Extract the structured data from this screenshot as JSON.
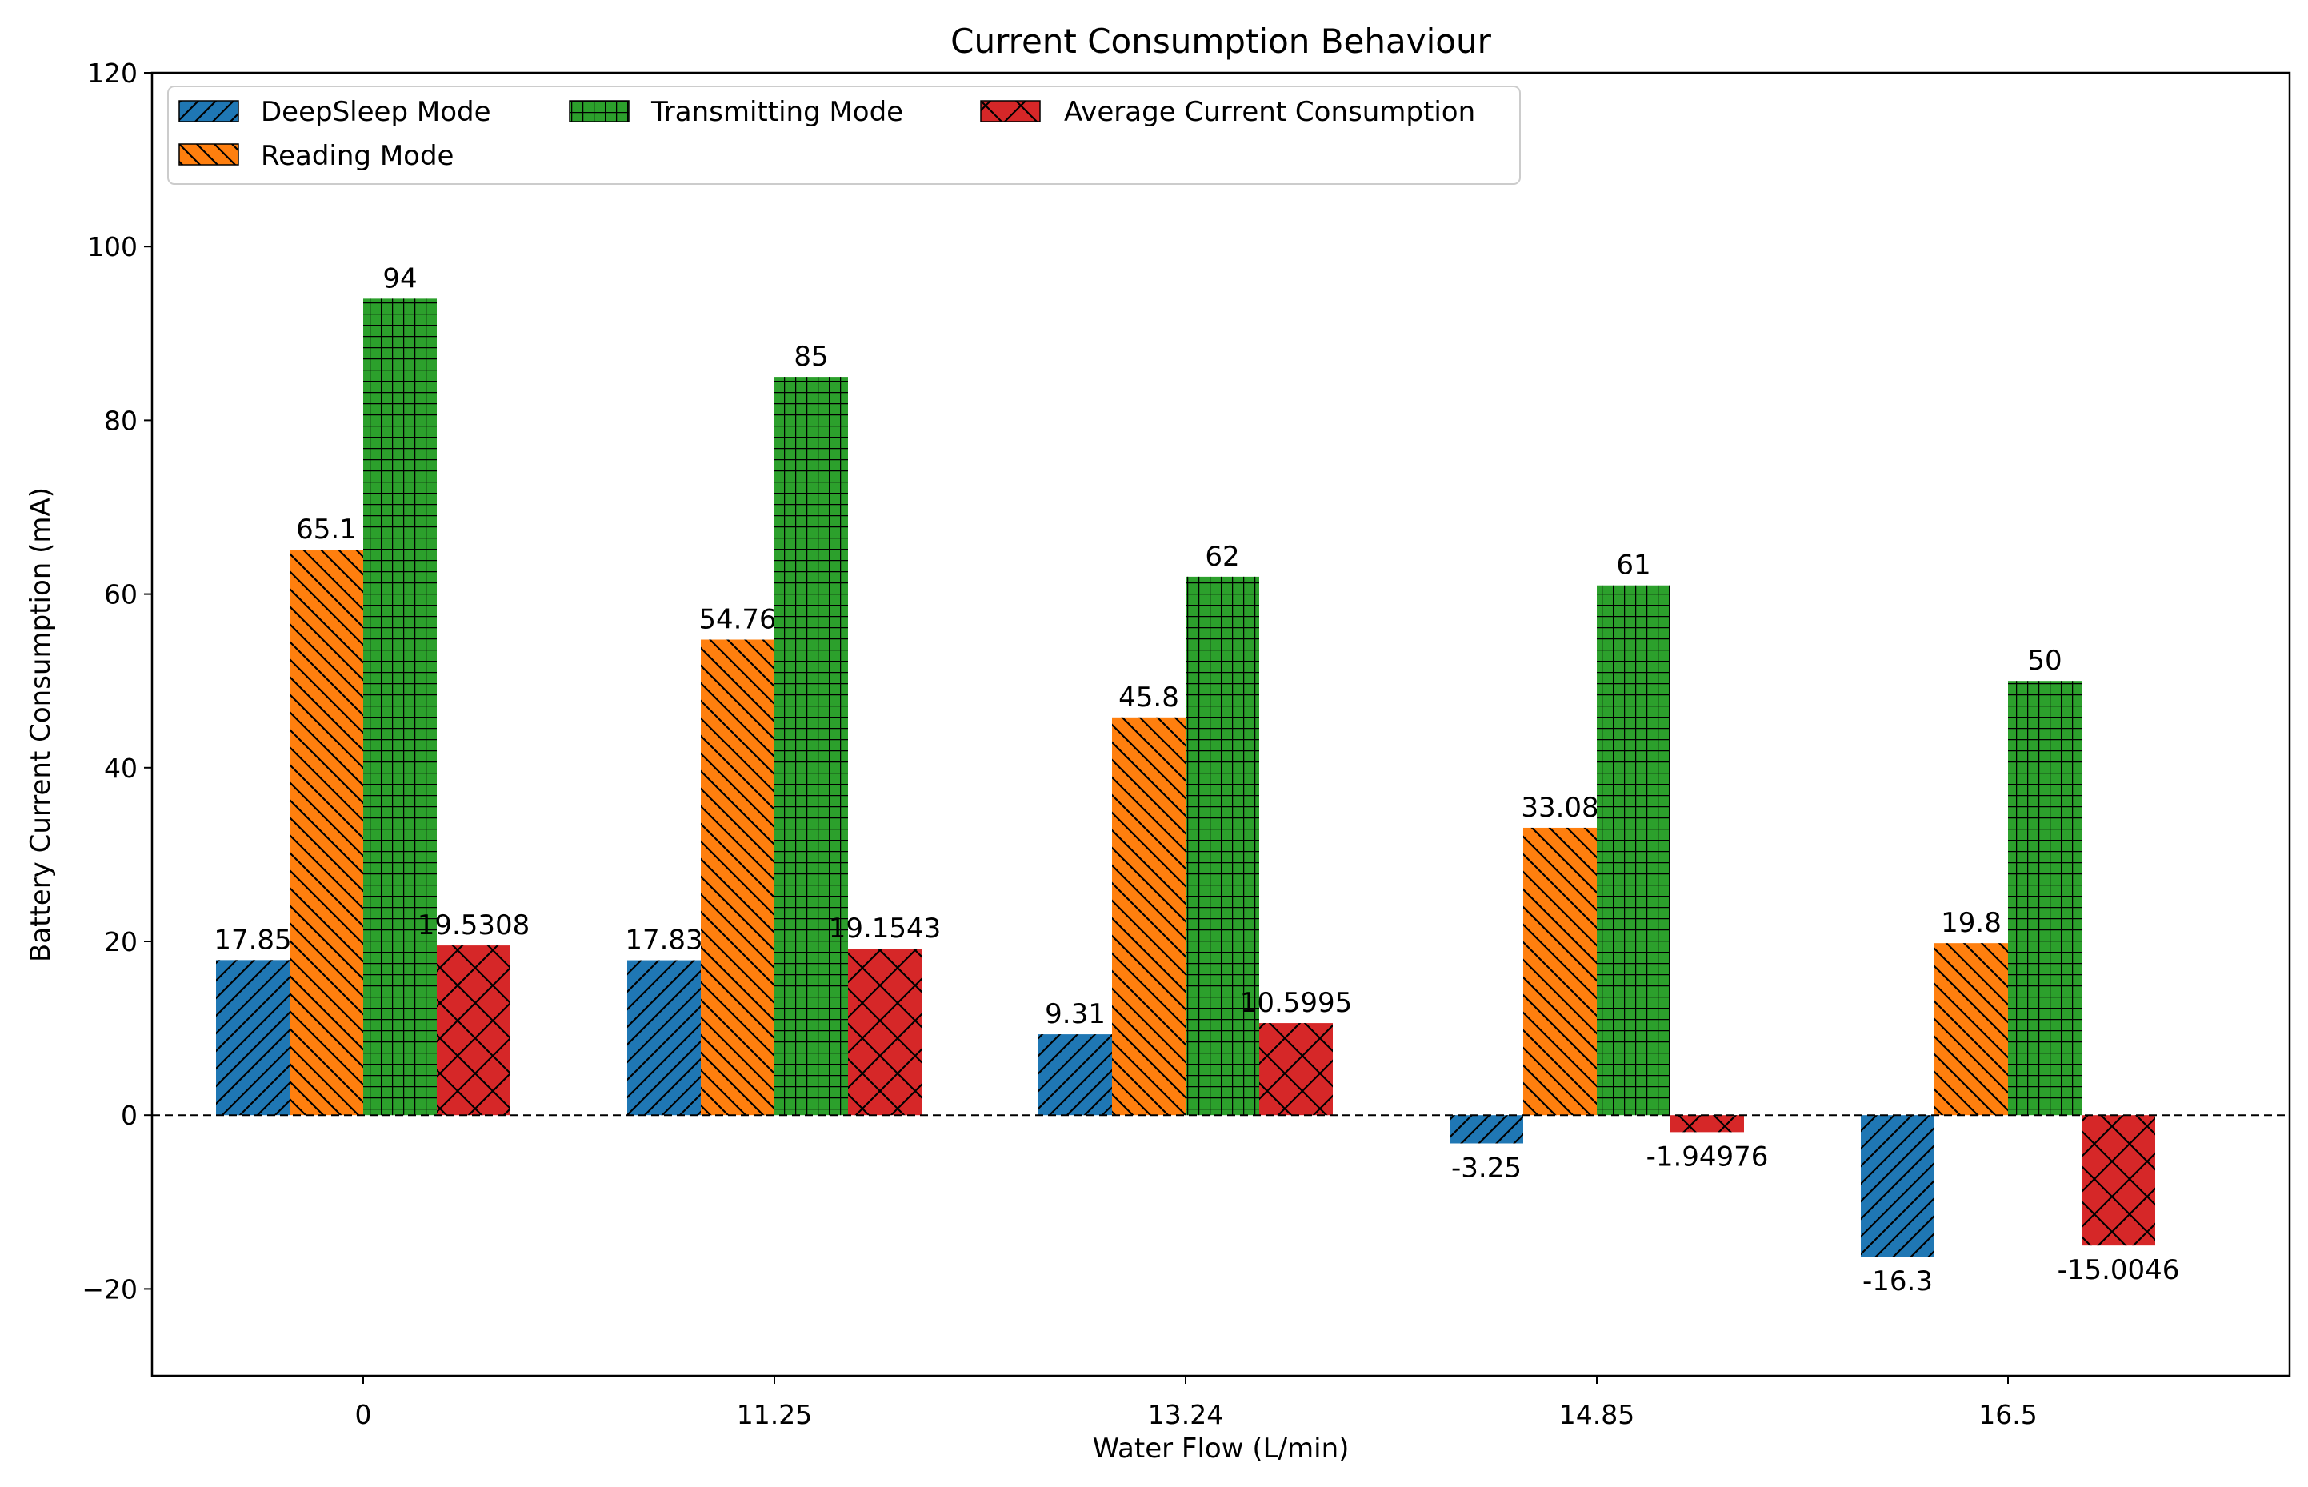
{
  "chart_data": {
    "type": "bar",
    "title": "Current Consumption Behaviour",
    "xlabel": "Water Flow (L/min)",
    "ylabel": "Battery Current Consumption (mA)",
    "categories": [
      "0",
      "11.25",
      "13.24",
      "14.85",
      "16.5"
    ],
    "ylim": [
      -30,
      120
    ],
    "yticks": [
      -20,
      0,
      20,
      40,
      60,
      80,
      100,
      120
    ],
    "ytick_labels": [
      "−20",
      "0",
      "20",
      "40",
      "60",
      "80",
      "100",
      "120"
    ],
    "zero_line": "dashed",
    "grid": false,
    "legend_position": "top-left",
    "series": [
      {
        "name": "DeepSleep Mode",
        "color": "#1f77b4",
        "hatch": "slash",
        "values": [
          17.85,
          17.83,
          9.31,
          -3.25,
          -16.3
        ],
        "labels": [
          "17.85",
          "17.83",
          "9.31",
          "-3.25",
          "-16.3"
        ]
      },
      {
        "name": "Reading Mode",
        "color": "#ff7f0e",
        "hatch": "backslash",
        "values": [
          65.1,
          54.76,
          45.8,
          33.08,
          19.8
        ],
        "labels": [
          "65.1",
          "54.76",
          "45.8",
          "33.08",
          "19.8"
        ]
      },
      {
        "name": "Transmitting Mode",
        "color": "#2ca02c",
        "hatch": "grid",
        "values": [
          94,
          85,
          62,
          61,
          50
        ],
        "labels": [
          "94",
          "85",
          "62",
          "61",
          "50"
        ]
      },
      {
        "name": "Average Current Consumption",
        "color": "#d62728",
        "hatch": "crosshatch",
        "values": [
          19.5308,
          19.1543,
          10.5995,
          -1.94976,
          -15.0046
        ],
        "labels": [
          "19.5308",
          "19.1543",
          "10.5995",
          "-1.94976",
          "-15.0046"
        ]
      }
    ]
  }
}
